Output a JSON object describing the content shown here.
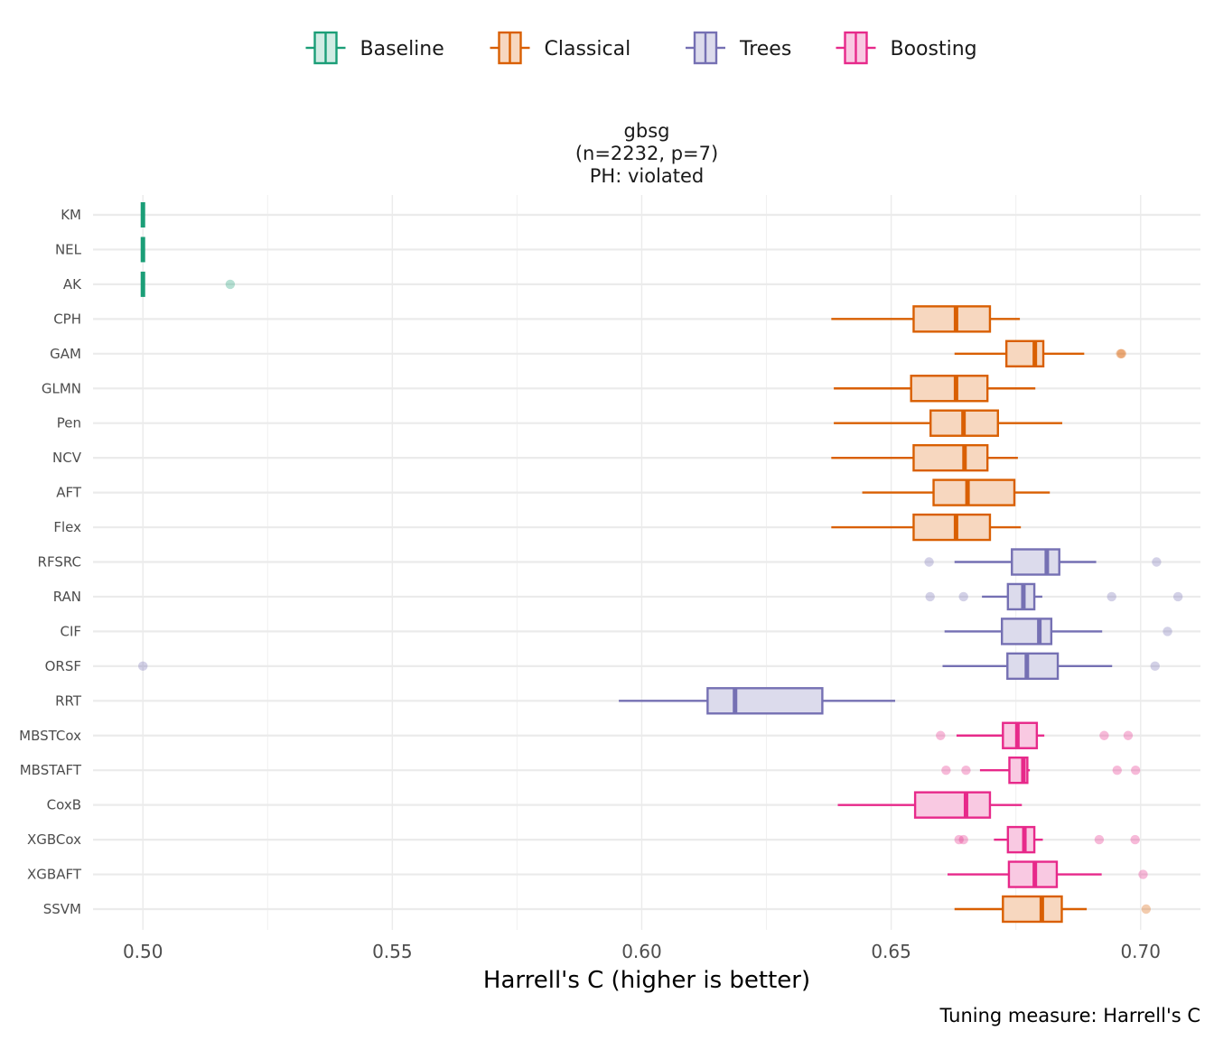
{
  "chart_data": {
    "type": "boxplot",
    "title_lines": [
      "gbsg",
      "(n=2232, p=7)",
      "PH: violated"
    ],
    "xlabel": "Harrell's C (higher is better)",
    "caption": "Tuning measure: Harrell's C",
    "xlim": [
      0.49,
      0.712
    ],
    "x_ticks": [
      {
        "value": 0.5,
        "label": "0.50"
      },
      {
        "value": 0.55,
        "label": "0.55"
      },
      {
        "value": 0.6,
        "label": "0.60"
      },
      {
        "value": 0.65,
        "label": "0.65"
      },
      {
        "value": 0.7,
        "label": "0.70"
      }
    ],
    "grid": true,
    "legend_position": "top",
    "groups": [
      {
        "name": "Baseline",
        "color": "#1b9e77",
        "fill": "#d1ece4"
      },
      {
        "name": "Classical",
        "color": "#d95f02",
        "fill": "#f7d7bf"
      },
      {
        "name": "Trees",
        "color": "#7570b3",
        "fill": "#dcdbec"
      },
      {
        "name": "Boosting",
        "color": "#e7298a",
        "fill": "#f9c9e2"
      }
    ],
    "rows": [
      {
        "learner": "KM",
        "group": "Baseline",
        "whisker_low": 0.5,
        "q1": 0.5,
        "median": 0.5,
        "q3": 0.5,
        "whisker_high": 0.5,
        "outliers": []
      },
      {
        "learner": "NEL",
        "group": "Baseline",
        "whisker_low": 0.5,
        "q1": 0.5,
        "median": 0.5,
        "q3": 0.5,
        "whisker_high": 0.5,
        "outliers": []
      },
      {
        "learner": "AK",
        "group": "Baseline",
        "whisker_low": 0.5,
        "q1": 0.5,
        "median": 0.5,
        "q3": 0.5,
        "whisker_high": 0.5,
        "outliers": [
          0.5175
        ]
      },
      {
        "learner": "CPH",
        "group": "Classical",
        "whisker_low": 0.638,
        "q1": 0.6545,
        "median": 0.663,
        "q3": 0.6698,
        "whisker_high": 0.6758,
        "outliers": []
      },
      {
        "learner": "GAM",
        "group": "Classical",
        "whisker_low": 0.6627,
        "q1": 0.6731,
        "median": 0.6788,
        "q3": 0.6805,
        "whisker_high": 0.6887,
        "outliers": [
          0.696,
          0.6962
        ]
      },
      {
        "learner": "GLMN",
        "group": "Classical",
        "whisker_low": 0.6385,
        "q1": 0.654,
        "median": 0.663,
        "q3": 0.6693,
        "whisker_high": 0.6789,
        "outliers": []
      },
      {
        "learner": "Pen",
        "group": "Classical",
        "whisker_low": 0.6385,
        "q1": 0.6579,
        "median": 0.6645,
        "q3": 0.6714,
        "whisker_high": 0.6843,
        "outliers": []
      },
      {
        "learner": "NCV",
        "group": "Classical",
        "whisker_low": 0.638,
        "q1": 0.6545,
        "median": 0.6647,
        "q3": 0.6693,
        "whisker_high": 0.6754,
        "outliers": []
      },
      {
        "learner": "AFT",
        "group": "Classical",
        "whisker_low": 0.6442,
        "q1": 0.6585,
        "median": 0.6653,
        "q3": 0.6747,
        "whisker_high": 0.6818,
        "outliers": []
      },
      {
        "learner": "Flex",
        "group": "Classical",
        "whisker_low": 0.638,
        "q1": 0.6545,
        "median": 0.663,
        "q3": 0.6698,
        "whisker_high": 0.676,
        "outliers": []
      },
      {
        "learner": "RFSRC",
        "group": "Trees",
        "whisker_low": 0.6627,
        "q1": 0.6742,
        "median": 0.6812,
        "q3": 0.6837,
        "whisker_high": 0.6911,
        "outliers": [
          0.6576,
          0.7032
        ]
      },
      {
        "learner": "RAN",
        "group": "Trees",
        "whisker_low": 0.6682,
        "q1": 0.6734,
        "median": 0.6765,
        "q3": 0.6787,
        "whisker_high": 0.6803,
        "outliers": [
          0.6578,
          0.6645,
          0.6942,
          0.7075
        ]
      },
      {
        "learner": "CIF",
        "group": "Trees",
        "whisker_low": 0.6607,
        "q1": 0.6722,
        "median": 0.6797,
        "q3": 0.6821,
        "whisker_high": 0.6923,
        "outliers": [
          0.7054
        ]
      },
      {
        "learner": "ORSF",
        "group": "Trees",
        "whisker_low": 0.6603,
        "q1": 0.6733,
        "median": 0.6772,
        "q3": 0.6834,
        "whisker_high": 0.6943,
        "outliers": [
          0.5,
          0.7029
        ]
      },
      {
        "learner": "RRT",
        "group": "Trees",
        "whisker_low": 0.5954,
        "q1": 0.6132,
        "median": 0.6187,
        "q3": 0.6362,
        "whisker_high": 0.6508,
        "outliers": []
      },
      {
        "learner": "MBSTCox",
        "group": "Boosting",
        "whisker_low": 0.6631,
        "q1": 0.6724,
        "median": 0.6753,
        "q3": 0.6792,
        "whisker_high": 0.6807,
        "outliers": [
          0.6599,
          0.6927,
          0.6975
        ]
      },
      {
        "learner": "MBSTAFT",
        "group": "Boosting",
        "whisker_low": 0.6678,
        "q1": 0.6737,
        "median": 0.6765,
        "q3": 0.6773,
        "whisker_high": 0.6778,
        "outliers": [
          0.661,
          0.665,
          0.6953,
          0.699
        ]
      },
      {
        "learner": "CoxB",
        "group": "Boosting",
        "whisker_low": 0.6393,
        "q1": 0.6548,
        "median": 0.665,
        "q3": 0.6698,
        "whisker_high": 0.6762,
        "outliers": []
      },
      {
        "learner": "XGBCox",
        "group": "Boosting",
        "whisker_low": 0.6706,
        "q1": 0.6734,
        "median": 0.6767,
        "q3": 0.6787,
        "whisker_high": 0.6804,
        "outliers": [
          0.6636,
          0.6645,
          0.6917,
          0.6989
        ]
      },
      {
        "learner": "XGBAFT",
        "group": "Boosting",
        "whisker_low": 0.6613,
        "q1": 0.6736,
        "median": 0.6788,
        "q3": 0.6832,
        "whisker_high": 0.6922,
        "outliers": [
          0.7005
        ]
      },
      {
        "learner": "SSVM",
        "group": "Classical",
        "whisker_low": 0.6627,
        "q1": 0.6724,
        "median": 0.6802,
        "q3": 0.6842,
        "whisker_high": 0.6892,
        "outliers": [
          0.7011
        ]
      }
    ]
  }
}
